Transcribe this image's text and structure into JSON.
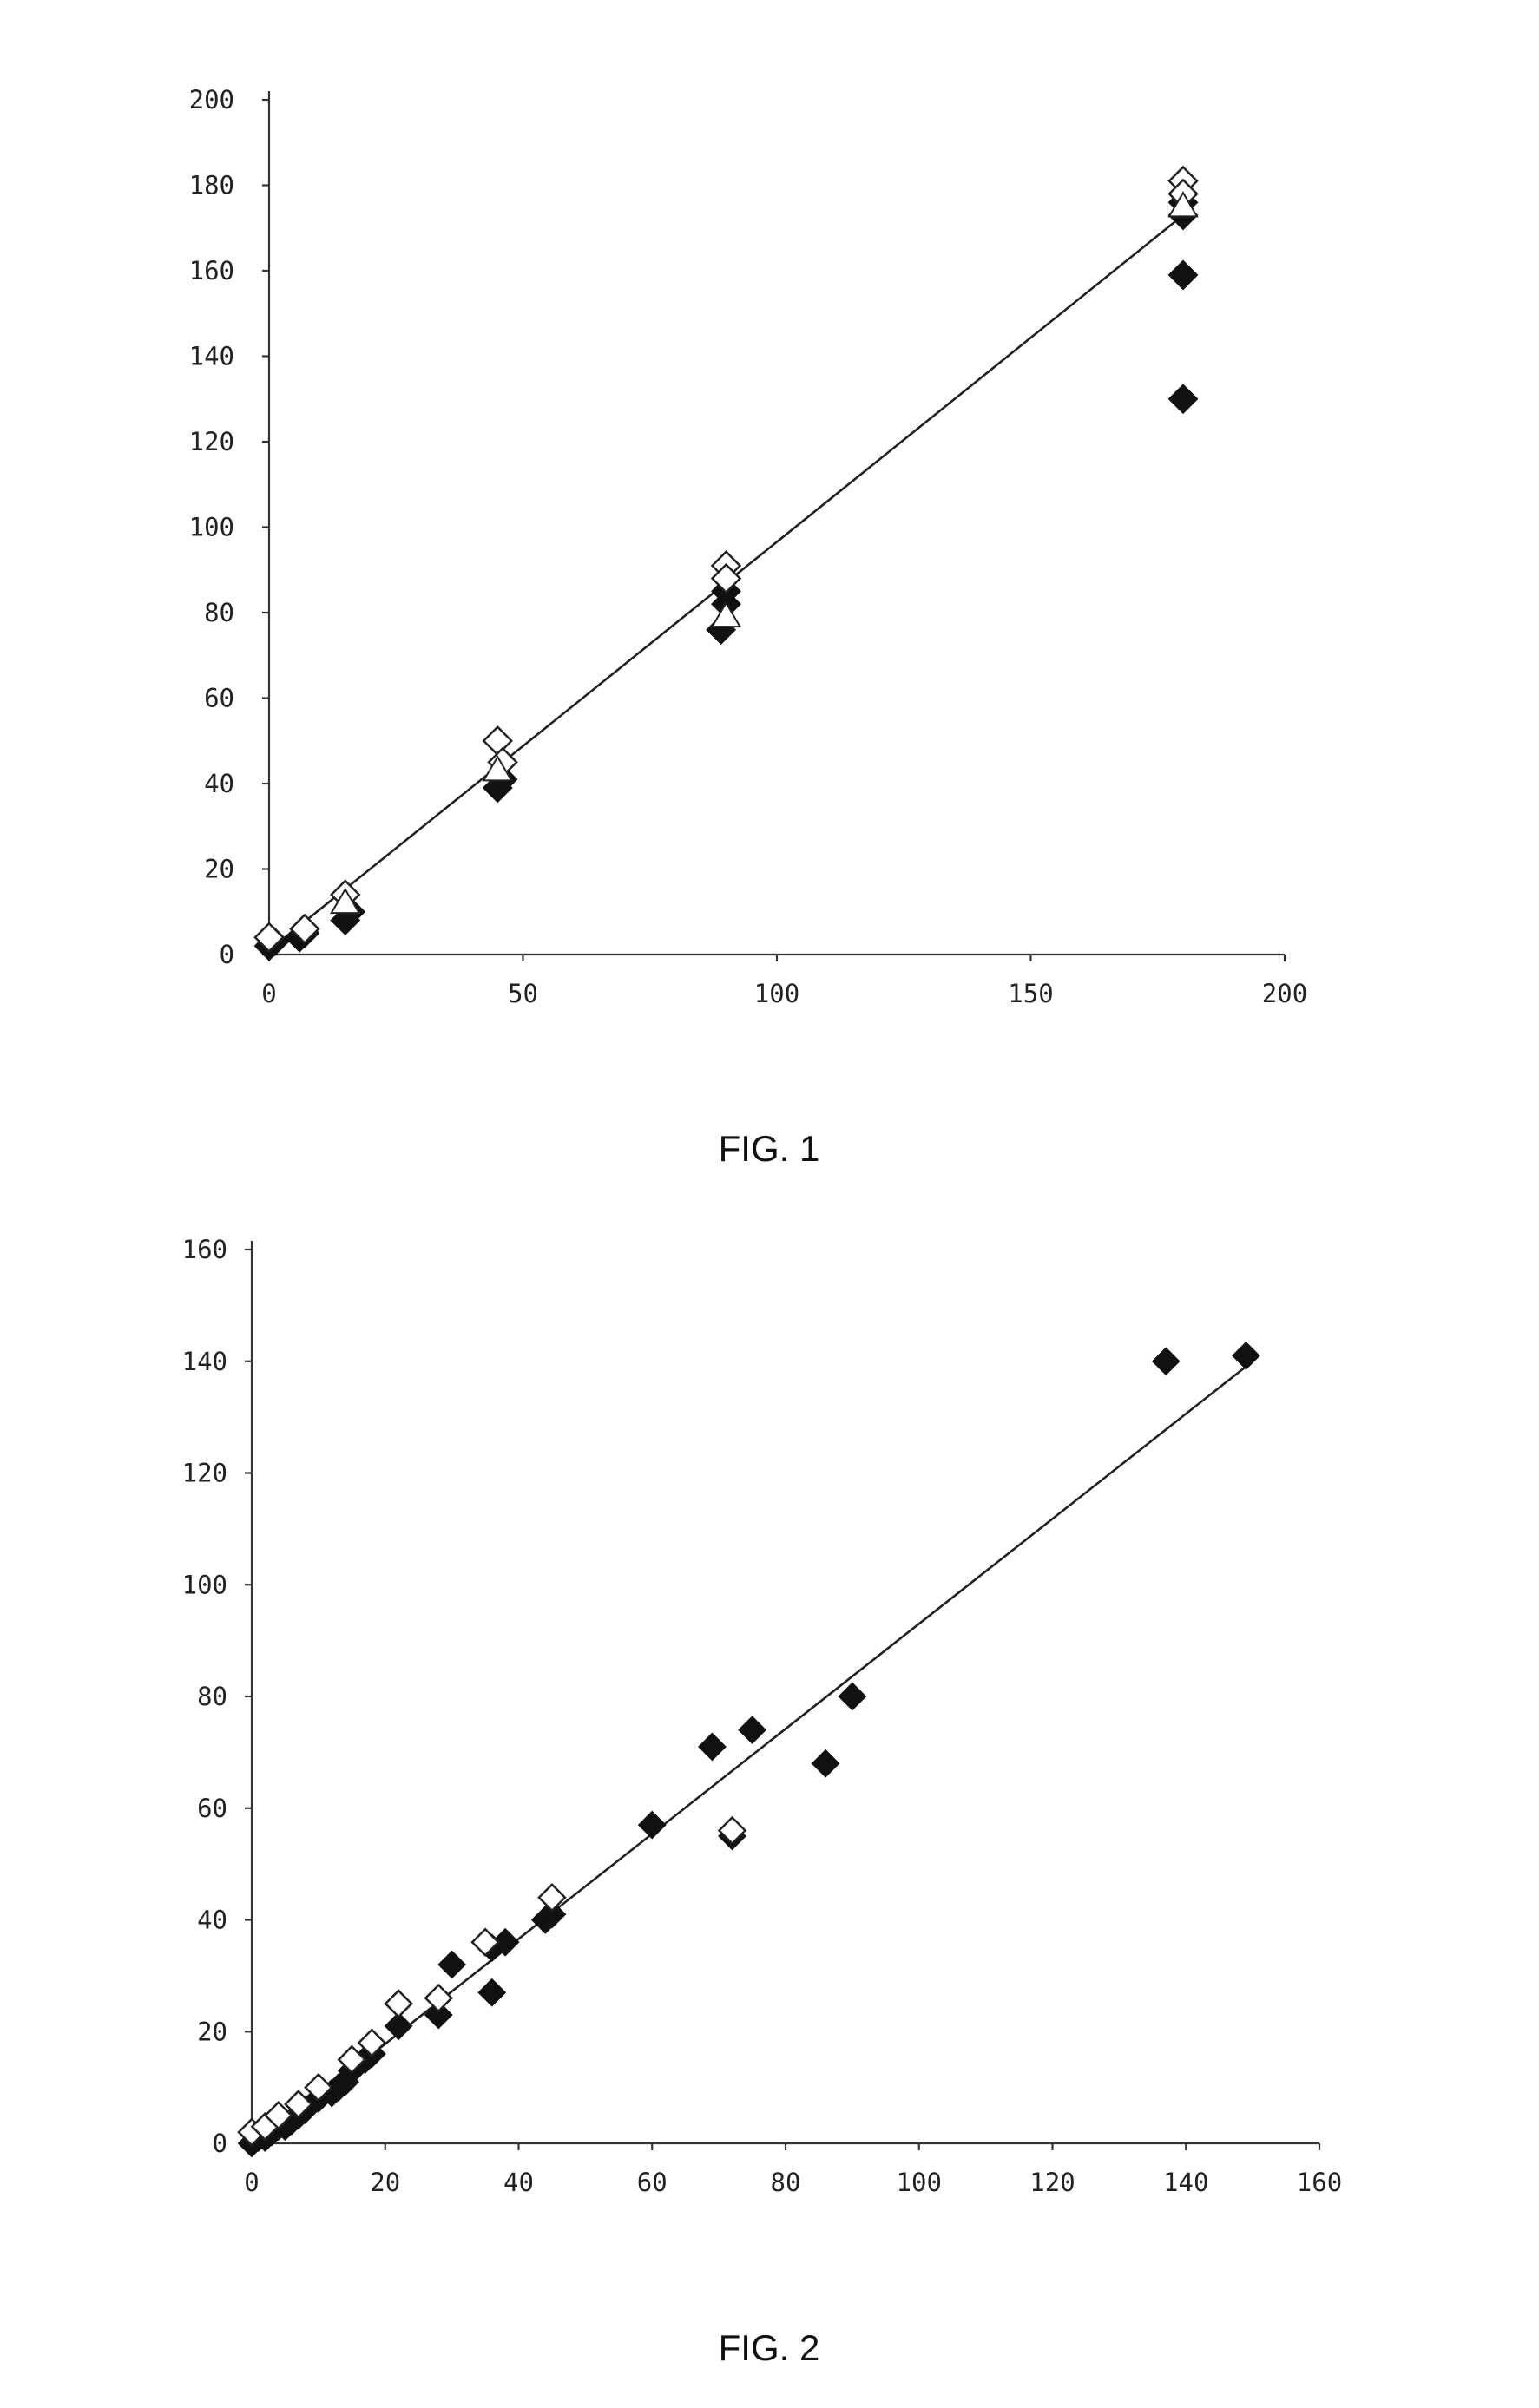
{
  "captions": {
    "fig1": "FIG. 1",
    "fig2": "FIG. 2"
  },
  "chart_data": [
    {
      "id": "fig1",
      "type": "scatter",
      "title": "",
      "xlabel": "",
      "ylabel": "",
      "xlim": [
        0,
        200
      ],
      "ylim": [
        0,
        200
      ],
      "xticks": [
        0,
        50,
        100,
        150,
        200
      ],
      "yticks": [
        0,
        20,
        40,
        60,
        80,
        100,
        120,
        140,
        160,
        180,
        200
      ],
      "grid": false,
      "legend": "none",
      "trendline": {
        "x": [
          0,
          180
        ],
        "y": [
          1,
          173
        ]
      },
      "series": [
        {
          "marker": "filled-diamond",
          "points": [
            [
              0,
              2
            ],
            [
              1,
              3
            ],
            [
              6,
              4
            ],
            [
              7,
              5
            ],
            [
              15,
              8
            ],
            [
              16,
              10
            ],
            [
              45,
              39
            ],
            [
              46,
              41
            ],
            [
              89,
              76
            ],
            [
              90,
              82
            ],
            [
              90,
              85
            ],
            [
              180,
              130
            ],
            [
              180,
              159
            ],
            [
              180,
              173
            ],
            [
              180,
              176
            ]
          ]
        },
        {
          "marker": "open-diamond",
          "points": [
            [
              0,
              4
            ],
            [
              7,
              6
            ],
            [
              15,
              14
            ],
            [
              45,
              50
            ],
            [
              46,
              45
            ],
            [
              90,
              91
            ],
            [
              90,
              88
            ],
            [
              180,
              181
            ],
            [
              180,
              178
            ]
          ]
        },
        {
          "marker": "open-triangle",
          "points": [
            [
              15,
              12
            ],
            [
              45,
              43
            ],
            [
              90,
              79
            ],
            [
              180,
              175
            ]
          ]
        }
      ]
    },
    {
      "id": "fig2",
      "type": "scatter",
      "title": "",
      "xlabel": "",
      "ylabel": "",
      "xlim": [
        0,
        160
      ],
      "ylim": [
        0,
        160
      ],
      "xticks": [
        0,
        20,
        40,
        60,
        80,
        100,
        120,
        140,
        160
      ],
      "yticks": [
        0,
        20,
        40,
        60,
        80,
        100,
        120,
        140,
        160
      ],
      "grid": false,
      "legend": "none",
      "trendline": {
        "x": [
          0,
          150
        ],
        "y": [
          -1,
          140
        ]
      },
      "series": [
        {
          "marker": "filled-diamond",
          "points": [
            [
              0,
              0
            ],
            [
              1,
              1
            ],
            [
              2,
              1
            ],
            [
              3,
              2
            ],
            [
              4,
              3
            ],
            [
              5,
              3
            ],
            [
              6,
              4
            ],
            [
              7,
              5
            ],
            [
              8,
              6
            ],
            [
              10,
              8
            ],
            [
              12,
              9
            ],
            [
              13,
              10
            ],
            [
              14,
              11
            ],
            [
              15,
              13
            ],
            [
              17,
              15
            ],
            [
              18,
              16
            ],
            [
              22,
              21
            ],
            [
              28,
              23
            ],
            [
              30,
              32
            ],
            [
              36,
              27
            ],
            [
              36,
              35
            ],
            [
              38,
              36
            ],
            [
              44,
              40
            ],
            [
              45,
              41
            ],
            [
              60,
              57
            ],
            [
              69,
              71
            ],
            [
              72,
              55
            ],
            [
              75,
              74
            ],
            [
              86,
              68
            ],
            [
              90,
              80
            ],
            [
              137,
              140
            ],
            [
              149,
              141
            ]
          ]
        },
        {
          "marker": "open-diamond",
          "points": [
            [
              0,
              2
            ],
            [
              2,
              3
            ],
            [
              4,
              5
            ],
            [
              7,
              7
            ],
            [
              10,
              10
            ],
            [
              15,
              15
            ],
            [
              18,
              18
            ],
            [
              22,
              25
            ],
            [
              28,
              26
            ],
            [
              35,
              36
            ],
            [
              45,
              44
            ],
            [
              72,
              56
            ]
          ]
        }
      ]
    }
  ]
}
